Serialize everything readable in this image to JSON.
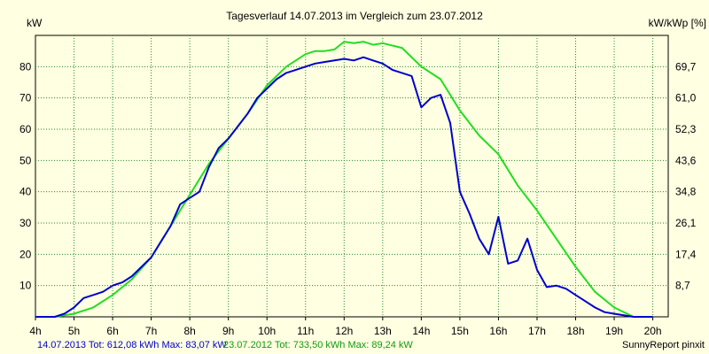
{
  "chart_data": {
    "type": "line",
    "title": "Tagesverlauf 14.07.2013 im Vergleich zum 23.07.2012",
    "ylabel_left": "kW",
    "ylabel_right": "kW/kWp [%]",
    "x_ticks": [
      "4h",
      "5h",
      "6h",
      "7h",
      "8h",
      "9h",
      "10h",
      "11h",
      "12h",
      "13h",
      "14h",
      "15h",
      "16h",
      "17h",
      "18h",
      "19h",
      "20h"
    ],
    "xlim": [
      4,
      20.4
    ],
    "ylim": [
      0,
      90
    ],
    "y_ticks_left": [
      "10",
      "20",
      "30",
      "40",
      "50",
      "60",
      "70",
      "80"
    ],
    "y_ticks_left_values": [
      10,
      20,
      30,
      40,
      50,
      60,
      70,
      80
    ],
    "y_ticks_right": [
      "8,7",
      "17,4",
      "26,1",
      "34,8",
      "43,6",
      "52,3",
      "61,0",
      "69,7"
    ],
    "y_ticks_right_values": [
      10,
      20,
      30,
      40,
      50,
      60,
      70,
      80
    ],
    "grid": true,
    "footer_series1": "14.07.2013 Tot: 612,08 kWh Max: 83,07 kW",
    "footer_series2": "23.07.2012 Tot: 733,50 kWh Max: 89,24 kW",
    "footer_brand": "SunnyReport pinxit",
    "series": [
      {
        "color": "#0000cc",
        "x": [
          4.0,
          4.5,
          4.75,
          5.0,
          5.25,
          5.5,
          5.75,
          6.0,
          6.25,
          6.5,
          6.75,
          7.0,
          7.25,
          7.5,
          7.75,
          8.0,
          8.25,
          8.5,
          8.75,
          9.0,
          9.25,
          9.5,
          9.75,
          10.0,
          10.25,
          10.5,
          10.75,
          11.0,
          11.25,
          11.5,
          11.75,
          12.0,
          12.25,
          12.5,
          12.75,
          13.0,
          13.25,
          13.5,
          13.75,
          14.0,
          14.25,
          14.5,
          14.75,
          15.0,
          15.25,
          15.5,
          15.75,
          16.0,
          16.25,
          16.5,
          16.75,
          17.0,
          17.25,
          17.5,
          17.75,
          18.0,
          18.25,
          18.5,
          18.75,
          19.0,
          19.25,
          19.5,
          20.0
        ],
        "values": [
          0,
          0,
          1,
          3,
          6,
          7,
          8,
          10,
          11,
          13,
          16,
          19,
          24,
          29,
          36,
          38,
          40,
          48,
          54,
          57,
          61,
          65,
          70,
          73,
          76,
          78,
          79,
          80,
          81,
          81.5,
          82,
          82.5,
          82,
          83,
          82,
          81,
          79,
          78,
          77,
          67,
          70,
          71,
          62,
          40,
          33,
          25,
          20,
          32,
          17,
          18,
          25,
          15,
          9.5,
          10,
          9,
          7,
          5,
          3,
          1.5,
          1,
          0.5,
          0,
          0
        ]
      },
      {
        "color": "#22dd22",
        "x": [
          4.0,
          4.5,
          5.0,
          5.5,
          6.0,
          6.5,
          7.0,
          7.5,
          8.0,
          8.5,
          9.0,
          9.5,
          10.0,
          10.5,
          11.0,
          11.25,
          11.5,
          11.75,
          12.0,
          12.25,
          12.5,
          12.75,
          13.0,
          13.5,
          14.0,
          14.5,
          15.0,
          15.5,
          16.0,
          16.5,
          17.0,
          17.5,
          18.0,
          18.5,
          19.0,
          19.5,
          20.0
        ],
        "values": [
          0,
          0,
          1,
          3,
          7,
          12,
          19,
          29,
          39,
          49,
          57,
          65,
          74,
          80,
          84,
          85,
          85,
          85.5,
          88,
          87.5,
          88,
          87,
          87.5,
          86,
          80,
          76,
          66,
          58,
          52,
          42,
          34,
          25,
          16,
          8,
          3,
          0,
          0
        ]
      }
    ]
  }
}
